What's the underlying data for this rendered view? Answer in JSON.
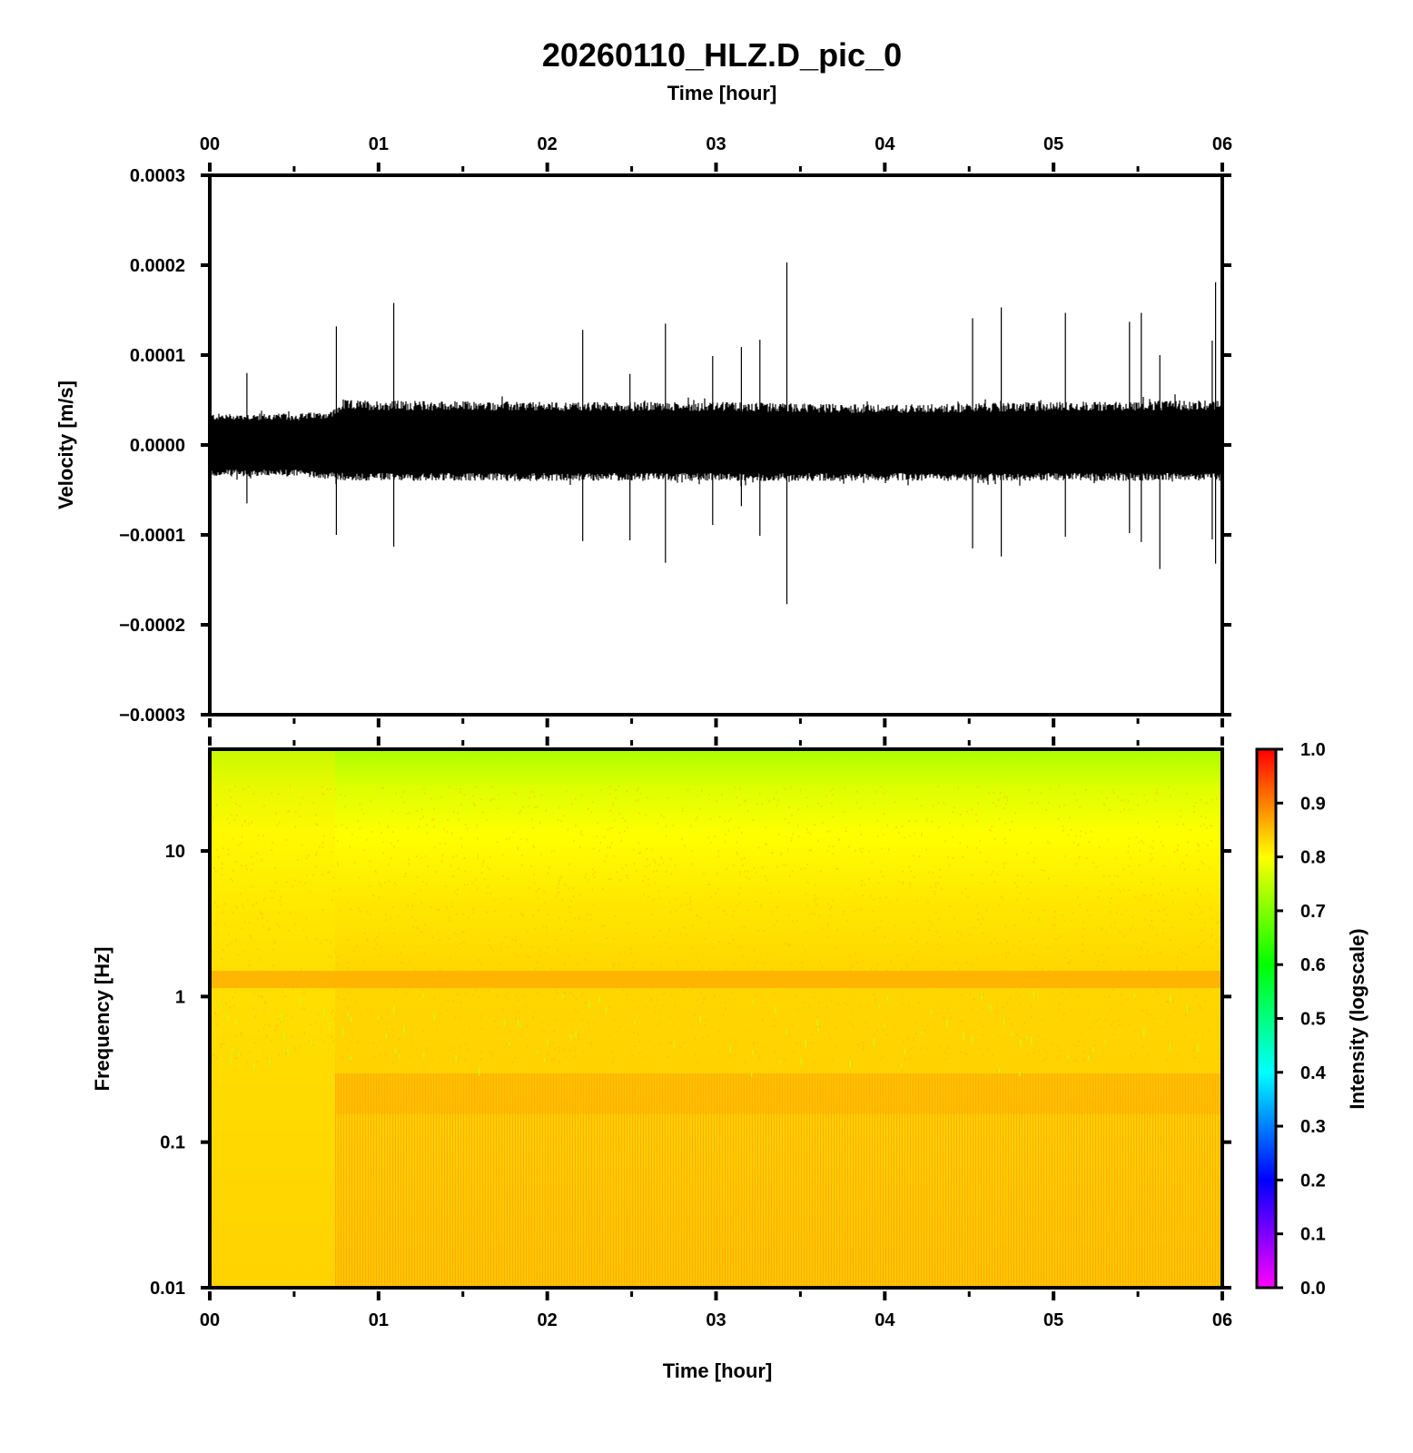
{
  "chart_data": [
    {
      "type": "line",
      "title": "20260110_HLZ.D_pic_0",
      "top_xlabel": "Time [hour]",
      "xlabel": "",
      "ylabel": "Velocity [m/s]",
      "xlim": [
        0,
        6
      ],
      "ylim": [
        -0.0003,
        0.0003
      ],
      "x_ticks": [
        "00",
        "01",
        "02",
        "03",
        "04",
        "05",
        "06"
      ],
      "y_ticks": [
        "0.0003",
        "0.0002",
        "0.0001",
        "0.0000",
        "−0.0001",
        "−0.0002",
        "−0.0003"
      ],
      "y_tick_values": [
        0.0003,
        0.0002,
        0.0001,
        0,
        -0.0001,
        -0.0002,
        -0.0003
      ],
      "line_color": "#000000",
      "series": [
        {
          "envelope": {
            "x": [
              0,
              0.5,
              0.72,
              0.8,
              2,
              3,
              4,
              5,
              6
            ],
            "upper": [
              3.5e-05,
              3.5e-05,
              3.8e-05,
              5e-05,
              4.8e-05,
              4.8e-05,
              4.5e-05,
              4.8e-05,
              5e-05
            ],
            "lower": [
              -3.5e-05,
              -3.5e-05,
              -3.8e-05,
              -4e-05,
              -4e-05,
              -4e-05,
              -4e-05,
              -4e-05,
              -4e-05
            ]
          },
          "spikes": [
            {
              "x": 0.22,
              "max": 8e-05,
              "min": -6.5e-05
            },
            {
              "x": 0.75,
              "max": 0.000132,
              "min": -0.0001
            },
            {
              "x": 1.09,
              "max": 0.000158,
              "min": -0.000113
            },
            {
              "x": 2.21,
              "max": 0.000128,
              "min": -0.000107
            },
            {
              "x": 2.49,
              "max": 7.9e-05,
              "min": -0.000106
            },
            {
              "x": 2.7,
              "max": 0.000135,
              "min": -0.000131
            },
            {
              "x": 2.98,
              "max": 9.9e-05,
              "min": -8.9e-05
            },
            {
              "x": 3.15,
              "max": 0.000109,
              "min": -6.8e-05
            },
            {
              "x": 3.26,
              "max": 0.000117,
              "min": -0.000101
            },
            {
              "x": 3.42,
              "max": 0.000203,
              "min": -0.000177
            },
            {
              "x": 4.52,
              "max": 0.000141,
              "min": -0.000115
            },
            {
              "x": 4.69,
              "max": 0.000153,
              "min": -0.000124
            },
            {
              "x": 5.07,
              "max": 0.000147,
              "min": -0.000102
            },
            {
              "x": 5.45,
              "max": 0.000137,
              "min": -9.8e-05
            },
            {
              "x": 5.52,
              "max": 0.000147,
              "min": -0.000108
            },
            {
              "x": 5.63,
              "max": 0.0001,
              "min": -0.000138
            },
            {
              "x": 5.94,
              "max": 0.000116,
              "min": -0.000105
            },
            {
              "x": 5.96,
              "max": 0.000181,
              "min": -0.000132
            }
          ]
        }
      ]
    },
    {
      "type": "heatmap",
      "title": "",
      "xlabel": "Time [hour]",
      "ylabel": "Frequency [Hz]",
      "xlim": [
        0,
        6
      ],
      "ylim": [
        0.01,
        50
      ],
      "y_scale": "log",
      "x_ticks": [
        "00",
        "01",
        "02",
        "03",
        "04",
        "05",
        "06"
      ],
      "y_ticks": [
        "10",
        "1",
        "0.1",
        "0.01"
      ],
      "y_tick_values": [
        10,
        1,
        0.1,
        0.01
      ],
      "colorbar": {
        "label": "Intensity (logscale)",
        "range": [
          0,
          1
        ],
        "ticks": [
          "1.0",
          "0.9",
          "0.8",
          "0.7",
          "0.6",
          "0.5",
          "0.4",
          "0.3",
          "0.2",
          "0.1",
          "0.0"
        ],
        "colormap": [
          "#ff00ff",
          "#0000ff",
          "#00ffff",
          "#00ff00",
          "#ffff00",
          "#ff0000"
        ]
      },
      "intensity_profile": {
        "freq": [
          50,
          20,
          10,
          2,
          1.45,
          1.15,
          0.5,
          0.3,
          0.15,
          0.01
        ],
        "intensity": [
          0.72,
          0.78,
          0.8,
          0.82,
          0.86,
          0.84,
          0.81,
          0.86,
          0.85,
          0.87
        ]
      },
      "quiet_interval_hours": [
        0,
        0.75
      ]
    }
  ]
}
